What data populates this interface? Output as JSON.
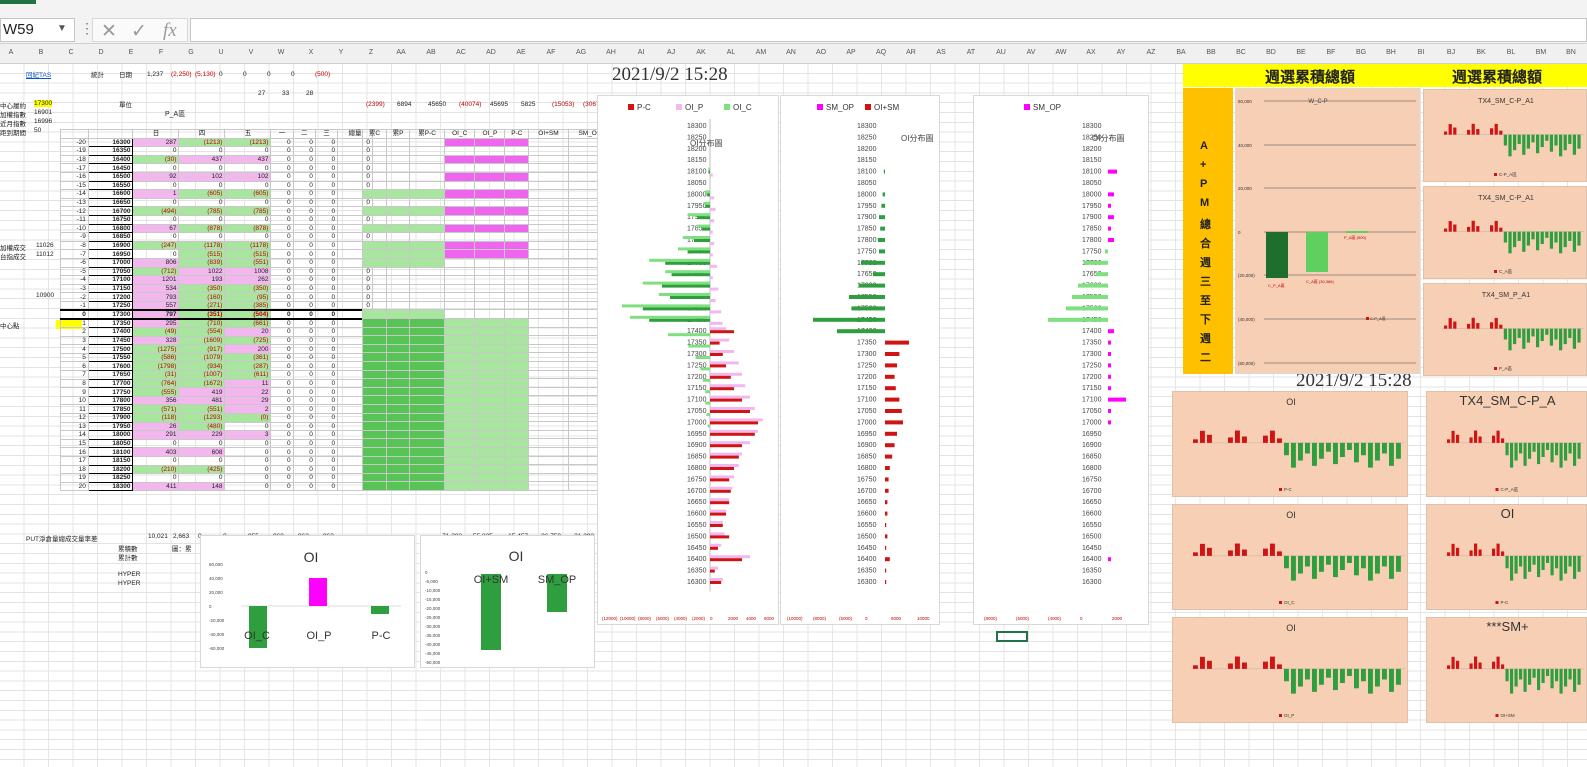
{
  "formula_bar": {
    "name_box": "W59",
    "cancel_glyph": "✕",
    "enter_glyph": "✓",
    "fx_label": "fx",
    "formula": ""
  },
  "columns": [
    "A",
    "B",
    "C",
    "D",
    "E",
    "F",
    "G",
    "U",
    "V",
    "W",
    "X",
    "Y",
    "Z",
    "AA",
    "AB",
    "AC",
    "AD",
    "AE",
    "AF",
    "AG",
    "AH",
    "AI",
    "AJ",
    "AK",
    "AL",
    "AM",
    "AN",
    "AO",
    "AP",
    "AQ",
    "AR",
    "AS",
    "AT",
    "AU",
    "AV",
    "AW",
    "AX",
    "AY",
    "AZ",
    "BA",
    "BB",
    "BC",
    "BD",
    "BE",
    "BF",
    "BG",
    "BH",
    "BI",
    "BJ",
    "BK",
    "BL",
    "BM",
    "BN"
  ],
  "top_left": {
    "link": "回紀TAS",
    "stat_label": "統計",
    "date_label": "日期",
    "r1_vals": [
      "1,237",
      "(2,250)",
      "(5,130)",
      "0",
      "0",
      "0",
      "0",
      "(500)"
    ],
    "r2_vals": [
      "27",
      "33",
      "28"
    ],
    "unit_label": "單位",
    "left_rows": [
      {
        "label": "中心履約",
        "value": "17300"
      },
      {
        "label": "加權指數",
        "value": "16901"
      },
      {
        "label": "近月指數",
        "value": "16996"
      },
      {
        "label": "距到期間",
        "value": "50"
      }
    ],
    "side_labels": [
      {
        "label": "加權成交",
        "value": "11026"
      },
      {
        "label": "台指成交",
        "value": "11012"
      },
      {
        "label": "",
        "value": "10900"
      },
      {
        "label": "中心點",
        "value": ""
      }
    ]
  },
  "table": {
    "title": "P_A區",
    "day_headers": [
      "日",
      "四",
      "五",
      "一",
      "二",
      "三",
      "總量"
    ],
    "rows": [
      {
        "idx": "-20",
        "strike": "16300",
        "v": [
          "287",
          "(1213)",
          "(1213)",
          "0",
          "0",
          "0",
          "0",
          "0",
          "116"
        ]
      },
      {
        "idx": "-19",
        "strike": "16350",
        "v": [
          "0",
          "0",
          "0",
          "0",
          "0",
          "0",
          "0",
          "0",
          "0"
        ]
      },
      {
        "idx": "-18",
        "strike": "16400",
        "v": [
          "(30)",
          "437",
          "437",
          "0",
          "0",
          "0",
          "0",
          "0",
          "417"
        ]
      },
      {
        "idx": "-17",
        "strike": "16450",
        "v": [
          "0",
          "0",
          "0",
          "0",
          "0",
          "0",
          "0",
          "0",
          "0"
        ]
      },
      {
        "idx": "-16",
        "strike": "16500",
        "v": [
          "92",
          "102",
          "102",
          "0",
          "0",
          "0",
          "0",
          "0",
          "194"
        ]
      },
      {
        "idx": "-15",
        "strike": "16550",
        "v": [
          "0",
          "0",
          "0",
          "0",
          "0",
          "0",
          "0",
          "0",
          "0"
        ]
      },
      {
        "idx": "-14",
        "strike": "16600",
        "v": [
          "1",
          "(605)",
          "(605)",
          "0",
          "0",
          "0",
          "0",
          "0",
          "(604)"
        ]
      },
      {
        "idx": "-13",
        "strike": "16650",
        "v": [
          "0",
          "0",
          "0",
          "0",
          "0",
          "0",
          "0",
          "0",
          "0"
        ]
      },
      {
        "idx": "-12",
        "strike": "16700",
        "v": [
          "(494)",
          "(785)",
          "(785)",
          "0",
          "0",
          "0",
          "0",
          "0",
          "(1279)"
        ]
      },
      {
        "idx": "-11",
        "strike": "16750",
        "v": [
          "0",
          "0",
          "0",
          "0",
          "0",
          "0",
          "0",
          "0",
          "0"
        ]
      },
      {
        "idx": "-10",
        "strike": "16800",
        "v": [
          "67",
          "(878)",
          "(878)",
          "0",
          "0",
          "0",
          "0",
          "0",
          "(811)"
        ]
      },
      {
        "idx": "-9",
        "strike": "16850",
        "v": [
          "0",
          "0",
          "0",
          "0",
          "0",
          "0",
          "0",
          "0",
          "0"
        ]
      },
      {
        "idx": "-8",
        "strike": "16900",
        "v": [
          "(247)",
          "(1178)",
          "(1178)",
          "0",
          "0",
          "0",
          "0",
          "0",
          "(1425)"
        ]
      },
      {
        "idx": "-7",
        "strike": "16950",
        "v": [
          "0",
          "(515)",
          "(515)",
          "0",
          "0",
          "0",
          "0",
          "0",
          "(515)"
        ]
      },
      {
        "idx": "-6",
        "strike": "17000",
        "v": [
          "806",
          "(839)",
          "(551)",
          "0",
          "0",
          "0",
          "0",
          "0",
          "(33)"
        ]
      },
      {
        "idx": "-5",
        "strike": "17050",
        "v": [
          "(712)",
          "1022",
          "1008",
          "0",
          "0",
          "0",
          "0",
          "0",
          "266"
        ]
      },
      {
        "idx": "-4",
        "strike": "17100",
        "v": [
          "1201",
          "193",
          "262",
          "0",
          "0",
          "0",
          "0",
          "0",
          "1445"
        ]
      },
      {
        "idx": "-3",
        "strike": "17150",
        "v": [
          "534",
          "(350)",
          "(350)",
          "0",
          "0",
          "0",
          "0",
          "0",
          "187"
        ]
      },
      {
        "idx": "-2",
        "strike": "17200",
        "v": [
          "793",
          "(160)",
          "(95)",
          "0",
          "0",
          "0",
          "0",
          "0",
          "667"
        ]
      },
      {
        "idx": "-1",
        "strike": "17250",
        "v": [
          "557",
          "(271)",
          "(385)",
          "0",
          "0",
          "0",
          "0",
          "0",
          "230"
        ]
      },
      {
        "idx": "0",
        "strike": "17300",
        "v": [
          "797",
          "(351)",
          "(504)",
          "0",
          "0",
          "0",
          "0",
          "0",
          "(285)"
        ]
      },
      {
        "idx": "1",
        "strike": "17350",
        "v": [
          "295",
          "(710)",
          "(661)",
          "0",
          "0",
          "0",
          "0",
          "0",
          "(306)"
        ]
      },
      {
        "idx": "2",
        "strike": "17400",
        "v": [
          "(49)",
          "(554)",
          "20",
          "0",
          "0",
          "0",
          "0",
          "0",
          "564"
        ]
      },
      {
        "idx": "3",
        "strike": "17450",
        "v": [
          "328",
          "(1609)",
          "(725)",
          "0",
          "0",
          "0",
          "0",
          "0",
          "(1281)"
        ]
      },
      {
        "idx": "4",
        "strike": "17500",
        "v": [
          "(1275)",
          "(917)",
          "200",
          "0",
          "0",
          "0",
          "0",
          "0",
          "612"
        ]
      },
      {
        "idx": "5",
        "strike": "17550",
        "v": [
          "(586)",
          "(1079)",
          "(361)",
          "0",
          "0",
          "0",
          "0",
          "0",
          "(3)"
        ]
      },
      {
        "idx": "6",
        "strike": "17600",
        "v": [
          "(1798)",
          "(934)",
          "(287)",
          "0",
          "0",
          "0",
          "0",
          "0",
          "(1173)"
        ]
      },
      {
        "idx": "7",
        "strike": "17650",
        "v": [
          "(31)",
          "(1007)",
          "(611)",
          "0",
          "0",
          "0",
          "0",
          "0",
          "(644)"
        ]
      },
      {
        "idx": "8",
        "strike": "17700",
        "v": [
          "(764)",
          "(1672)",
          "11",
          "0",
          "0",
          "0",
          "0",
          "0",
          "60"
        ]
      },
      {
        "idx": "9",
        "strike": "17750",
        "v": [
          "(555)",
          "419",
          "22",
          "0",
          "0",
          "0",
          "0",
          "0",
          "77"
        ]
      },
      {
        "idx": "10",
        "strike": "17800",
        "v": [
          "356",
          "481",
          "29",
          "0",
          "0",
          "0",
          "0",
          "0",
          "19"
        ]
      },
      {
        "idx": "11",
        "strike": "17850",
        "v": [
          "(571)",
          "(551)",
          "2",
          "0",
          "0",
          "0",
          "0",
          "0",
          "11"
        ]
      },
      {
        "idx": "12",
        "strike": "17900",
        "v": [
          "(118)",
          "(1293)",
          "(0)",
          "0",
          "0",
          "0",
          "0",
          "0",
          "(3)"
        ]
      },
      {
        "idx": "13",
        "strike": "17950",
        "v": [
          "26",
          "(480)",
          "0",
          "0",
          "0",
          "0",
          "0",
          "0",
          "3"
        ]
      },
      {
        "idx": "14",
        "strike": "18000",
        "v": [
          "291",
          "229",
          "3",
          "0",
          "0",
          "0",
          "0",
          "0",
          "3"
        ]
      },
      {
        "idx": "15",
        "strike": "18050",
        "v": [
          "0",
          "0",
          "0",
          "0",
          "0",
          "0",
          "0",
          "0",
          "0"
        ]
      },
      {
        "idx": "16",
        "strike": "18100",
        "v": [
          "403",
          "608",
          "0",
          "0",
          "0",
          "0",
          "0",
          "0",
          "0"
        ]
      },
      {
        "idx": "17",
        "strike": "18150",
        "v": [
          "0",
          "0",
          "0",
          "0",
          "0",
          "0",
          "0",
          "0",
          "0"
        ]
      },
      {
        "idx": "18",
        "strike": "18200",
        "v": [
          "(210)",
          "(425)",
          "0",
          "0",
          "0",
          "0",
          "0",
          "0",
          "0"
        ]
      },
      {
        "idx": "19",
        "strike": "18250",
        "v": [
          "0",
          "0",
          "0",
          "0",
          "0",
          "0",
          "0",
          "0",
          "0"
        ]
      },
      {
        "idx": "20",
        "strike": "18300",
        "v": [
          "411",
          "148",
          "0",
          "0",
          "0",
          "0",
          "0",
          "0",
          "0"
        ]
      }
    ],
    "footer_label": "PUT淨倉量總成交量率差",
    "footer_vals": [
      "10,021",
      "2,663",
      "0",
      "0",
      "955",
      "968",
      "962",
      "962"
    ],
    "footer2_label": "累積數",
    "footer3_label": "累計數",
    "footer_note": "圖：累",
    "hyper1": "HYPER",
    "hyper2": "HYPER"
  },
  "right_table": {
    "header_vals": [
      "(2399)",
      "6894",
      "45650",
      "(40074)",
      "45695",
      "5825",
      "(15053)",
      "(30677)"
    ],
    "col_headers": [
      "累C",
      "累P",
      "累P-C",
      "OI_C",
      "OI_P",
      "P-C",
      "OI+SM",
      "SM_OP"
    ],
    "footer_vals": [
      "-71,282",
      "55,825",
      "-15,457",
      "-36,750",
      "-21,293"
    ]
  },
  "timestamp_main": "2021/9/2 15:28",
  "timestamp_second": "2021/9/2 15:28",
  "chart1": {
    "legend": [
      "P-C",
      "OI_P",
      "OI_C"
    ],
    "title": "OI分布圖",
    "x_ticks": [
      "(12000)",
      "(10000)",
      "(8000)",
      "(6000)",
      "(4000)",
      "(2000)",
      "0",
      "2000",
      "4000",
      "6000"
    ],
    "strikes": [
      "18300",
      "18250",
      "18200",
      "18150",
      "18100",
      "18050",
      "18000",
      "17950",
      "17900",
      "17850",
      "17800",
      "17750",
      "17700",
      "17650",
      "17600",
      "17550",
      "17500",
      "17450",
      "17400",
      "17350",
      "17300",
      "17250",
      "17200",
      "17150",
      "17100",
      "17050",
      "17000",
      "16950",
      "16900",
      "16850",
      "16800",
      "16750",
      "16700",
      "16650",
      "16600",
      "16550",
      "16500",
      "16450",
      "16400",
      "16350",
      "16300"
    ]
  },
  "chart2": {
    "legend": [
      "SM_OP",
      "OI+SM"
    ],
    "title": "OI分布圖",
    "x_ticks": [
      "(10000)",
      "(8000)",
      "(5000)",
      "0",
      "5000",
      "10000"
    ]
  },
  "chart3": {
    "legend": [
      "SM_OP"
    ],
    "title": "OI分布圖",
    "x_ticks": [
      "(8000)",
      "(6000)",
      "(4000)",
      "0",
      "2000"
    ]
  },
  "oi_chart_small": {
    "title": "OI",
    "categories": [
      "OI_C",
      "OI_P",
      "P-C"
    ],
    "y_ticks": [
      "60,000",
      "40,000",
      "20,000",
      "0",
      "-20,000",
      "-40,000",
      "-60,000"
    ]
  },
  "oi_chart_small2": {
    "title": "OI",
    "categories": [
      "OI+SM",
      "SM_OP"
    ],
    "y_ticks": [
      "0",
      "-5,000",
      "-10,000",
      "-15,000",
      "-20,000",
      "-25,000",
      "-30,000",
      "-35,000",
      "-40,000",
      "-45,000",
      "-50,000"
    ]
  },
  "weekly": {
    "banner_left": "週選累積總額",
    "banner_right": "週選累積總額",
    "vertical_text": [
      "A",
      "+",
      "P",
      "M",
      "總",
      "合",
      "週",
      "三",
      "至",
      "下",
      "週",
      "二"
    ],
    "chart_title": "W_C-P",
    "y_ticks": [
      "60,000",
      "40,000",
      "20,000",
      "0",
      "(20,000)",
      "(40,000)",
      "(60,000)"
    ],
    "bar_labels": [
      "C_P_A區",
      "C_A區 (30,386)",
      "P_A區 (500)"
    ],
    "legend": "C-P_A區"
  },
  "mini_charts_right": [
    {
      "title": "TX4_SM_C-P_A1",
      "legend": "C-P_A區"
    },
    {
      "title": "TX4_SM_C-P_A1",
      "legend": "C_A區"
    },
    {
      "title": "TX4_SM_P_A1",
      "legend": "P_A區"
    }
  ],
  "bottom_charts": [
    {
      "title": "OI",
      "legend": "P-C"
    },
    {
      "title": "OI",
      "legend": "OI_C"
    },
    {
      "title": "OI",
      "legend": "OI_P"
    }
  ],
  "bottom_right_charts": [
    {
      "title": "TX4_SM_C-P_A",
      "legend": "C-P_A區"
    },
    {
      "title": "OI",
      "legend": "P-C"
    },
    {
      "title": "***SM+",
      "legend": "OI+SM"
    }
  ],
  "colors": {
    "excel_green": "#217346",
    "red_bar": "#d01414",
    "green_bar": "#2e9e3e",
    "light_green": "#7fe07f",
    "pink_bar": "#f2b8ee",
    "magenta": "#ff00ff",
    "peach": "#f7cfb4",
    "yellow": "#ffff00",
    "gold": "#ffc000"
  }
}
